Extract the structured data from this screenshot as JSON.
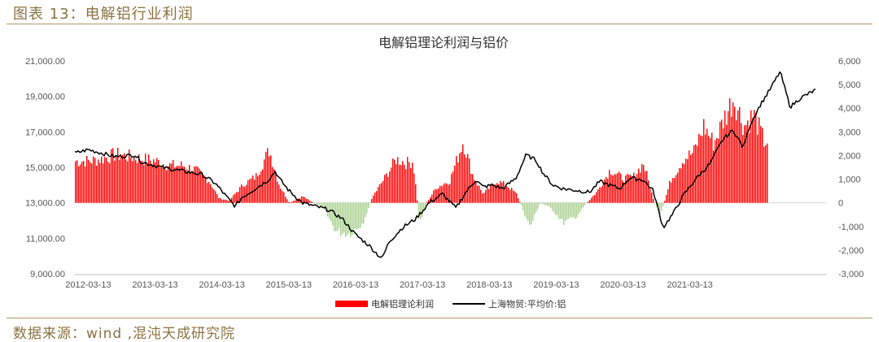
{
  "caption": "图表 13：电解铝行业利润",
  "source": "数据来源：wind ,混沌天成研究院",
  "colors": {
    "profit_pos": "#ff0000",
    "profit_neg": "#a9d18e",
    "price": "#000000"
  },
  "chart_data": {
    "type": "bar+line",
    "title": "电解铝理论利润与铝价",
    "x_ticks": [
      "2012-03-13",
      "2013-03-13",
      "2014-03-13",
      "2015-03-13",
      "2016-03-13",
      "2017-03-13",
      "2018-03-13",
      "2019-03-13",
      "2020-03-13",
      "2021-03-13"
    ],
    "y_left": {
      "ticks": [
        "21,000.00",
        "19,000.00",
        "17,000.00",
        "15,000.00",
        "13,000.00",
        "11,000.00",
        "9,000.00"
      ],
      "range": [
        9000,
        21000
      ]
    },
    "y_right": {
      "ticks": [
        "6,000",
        "5,000",
        "4,000",
        "3,000",
        "2,000",
        "1,000",
        "0",
        "-1,000",
        "-2,000",
        "-3,000"
      ],
      "range": [
        -3000,
        6000
      ]
    },
    "legend": [
      "电解铝理论利润",
      "上海物贸:平均价:铝"
    ],
    "series": [
      {
        "name": "电解铝理论利润",
        "axis": "right",
        "kind": "bar",
        "points": [
          [
            2012.2,
            1900
          ],
          [
            2012.4,
            2000
          ],
          [
            2012.6,
            2200
          ],
          [
            2012.8,
            2100
          ],
          [
            2013.0,
            2000
          ],
          [
            2013.2,
            1900
          ],
          [
            2013.4,
            1700
          ],
          [
            2013.6,
            1700
          ],
          [
            2013.8,
            1500
          ],
          [
            2014.0,
            1000
          ],
          [
            2014.15,
            200
          ],
          [
            2014.3,
            100
          ],
          [
            2014.5,
            800
          ],
          [
            2014.7,
            1200
          ],
          [
            2014.9,
            2400
          ],
          [
            2015.05,
            800
          ],
          [
            2015.2,
            0
          ],
          [
            2015.4,
            300
          ],
          [
            2015.5,
            100
          ],
          [
            2015.7,
            -200
          ],
          [
            2015.9,
            -1300
          ],
          [
            2016.1,
            -1400
          ],
          [
            2016.3,
            -900
          ],
          [
            2016.45,
            300
          ],
          [
            2016.6,
            1000
          ],
          [
            2016.8,
            2000
          ],
          [
            2016.95,
            1800
          ],
          [
            2017.05,
            1900
          ],
          [
            2017.15,
            -900
          ],
          [
            2017.25,
            0
          ],
          [
            2017.4,
            700
          ],
          [
            2017.6,
            1000
          ],
          [
            2017.8,
            2800
          ],
          [
            2017.95,
            1200
          ],
          [
            2018.1,
            400
          ],
          [
            2018.3,
            1000
          ],
          [
            2018.45,
            800
          ],
          [
            2018.6,
            400
          ],
          [
            2018.8,
            -1100
          ],
          [
            2018.95,
            0
          ],
          [
            2019.1,
            -200
          ],
          [
            2019.3,
            -900
          ],
          [
            2019.5,
            -600
          ],
          [
            2019.65,
            0
          ],
          [
            2019.8,
            500
          ],
          [
            2020.0,
            1500
          ],
          [
            2020.2,
            1100
          ],
          [
            2020.35,
            1200
          ],
          [
            2020.5,
            1800
          ],
          [
            2020.65,
            100
          ],
          [
            2020.75,
            -600
          ],
          [
            2020.9,
            1000
          ],
          [
            2021.1,
            2000
          ],
          [
            2021.25,
            2300
          ],
          [
            2021.4,
            3500
          ],
          [
            2021.55,
            2700
          ],
          [
            2021.7,
            3800
          ],
          [
            2021.85,
            4800
          ],
          [
            2022.0,
            3500
          ],
          [
            2022.15,
            4000
          ],
          [
            2022.3,
            2800
          ]
        ]
      },
      {
        "name": "上海物贸:平均价:铝",
        "axis": "left",
        "kind": "line",
        "points": [
          [
            2012.0,
            15800
          ],
          [
            2012.2,
            16000
          ],
          [
            2012.4,
            15800
          ],
          [
            2012.6,
            15600
          ],
          [
            2012.9,
            15700
          ],
          [
            2013.0,
            15300
          ],
          [
            2013.3,
            15000
          ],
          [
            2013.6,
            14800
          ],
          [
            2013.9,
            14600
          ],
          [
            2014.1,
            14100
          ],
          [
            2014.3,
            13200
          ],
          [
            2014.4,
            12800
          ],
          [
            2014.5,
            13300
          ],
          [
            2014.7,
            13800
          ],
          [
            2014.9,
            14300
          ],
          [
            2015.0,
            14800
          ],
          [
            2015.05,
            14400
          ],
          [
            2015.2,
            13700
          ],
          [
            2015.4,
            13000
          ],
          [
            2015.6,
            12800
          ],
          [
            2015.8,
            12600
          ],
          [
            2016.0,
            12100
          ],
          [
            2016.2,
            11200
          ],
          [
            2016.4,
            10600
          ],
          [
            2016.55,
            10000
          ],
          [
            2016.6,
            9900
          ],
          [
            2016.7,
            10800
          ],
          [
            2016.9,
            11600
          ],
          [
            2017.1,
            12100
          ],
          [
            2017.3,
            13000
          ],
          [
            2017.5,
            13500
          ],
          [
            2017.6,
            13100
          ],
          [
            2017.7,
            12700
          ],
          [
            2017.85,
            13600
          ],
          [
            2018.0,
            14300
          ],
          [
            2018.1,
            13900
          ],
          [
            2018.25,
            14000
          ],
          [
            2018.4,
            13800
          ],
          [
            2018.6,
            14400
          ],
          [
            2018.75,
            15700
          ],
          [
            2018.9,
            15400
          ],
          [
            2019.0,
            14700
          ],
          [
            2019.15,
            14000
          ],
          [
            2019.3,
            13800
          ],
          [
            2019.5,
            13700
          ],
          [
            2019.7,
            13600
          ],
          [
            2019.85,
            14200
          ],
          [
            2020.0,
            14000
          ],
          [
            2020.15,
            13800
          ],
          [
            2020.3,
            14400
          ],
          [
            2020.5,
            14300
          ],
          [
            2020.65,
            13700
          ],
          [
            2020.8,
            11600
          ],
          [
            2020.95,
            12400
          ],
          [
            2021.1,
            13400
          ],
          [
            2021.3,
            14400
          ],
          [
            2021.5,
            15200
          ],
          [
            2021.7,
            16600
          ],
          [
            2021.85,
            17100
          ],
          [
            2022.0,
            16100
          ],
          [
            2022.1,
            17400
          ],
          [
            2022.25,
            18500
          ],
          [
            2022.4,
            19400
          ],
          [
            2022.55,
            20400
          ],
          [
            2022.7,
            18400
          ],
          [
            2022.85,
            18900
          ],
          [
            2023.0,
            19200
          ],
          [
            2023.1,
            19400
          ]
        ]
      }
    ]
  }
}
